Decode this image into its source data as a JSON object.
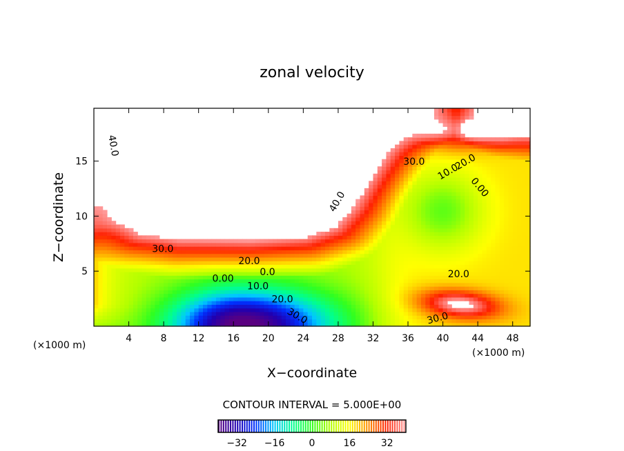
{
  "chart_data": {
    "type": "heatmap",
    "subtype": "filled-contour",
    "title": "zonal velocity",
    "xlabel": "X−coordinate",
    "ylabel": "Z−coordinate",
    "x_units_left": "(×1000 m)",
    "x_units_right": "(×1000 m)",
    "xlim": [
      0,
      50
    ],
    "ylim": [
      0,
      19.8
    ],
    "xticks": [
      4,
      8,
      12,
      16,
      20,
      24,
      28,
      32,
      36,
      40,
      44,
      48
    ],
    "yticks": [
      5,
      10,
      15
    ],
    "contour_interval_text": "CONTOUR INTERVAL = 5.000E+00",
    "contour_interval": 5,
    "colorbar": {
      "range": [
        -40,
        40
      ],
      "ticks": [
        -32,
        -16,
        0,
        16,
        32
      ],
      "tick_labels": [
        "−32",
        "−16",
        "0",
        "16",
        "32"
      ],
      "colors": [
        "#5a0080",
        "#2000b0",
        "#0030ff",
        "#00c8ff",
        "#00ff90",
        "#30ff20",
        "#b0ff00",
        "#ffff00",
        "#ff9000",
        "#ff2000",
        "#ff9a9a"
      ]
    },
    "above_range_color": "#ffffff",
    "features": {
      "jet_core_max_above": 40,
      "lower_minimum_approx": -40,
      "mid_right_minimum_approx": -5,
      "lower_right_maximum_approx": 35
    },
    "contour_labels": [
      {
        "text": "40.0",
        "x": 2.2,
        "z": 16.4,
        "angle": 80
      },
      {
        "text": "30.0",
        "x": 7.9,
        "z": 7.0,
        "angle": 0
      },
      {
        "text": "20.0",
        "x": 17.8,
        "z": 5.9,
        "angle": 0
      },
      {
        "text": "0.0",
        "x": 19.9,
        "z": 4.9,
        "angle": 0
      },
      {
        "text": "0.00",
        "x": 14.8,
        "z": 4.3,
        "angle": 0
      },
      {
        "text": "10.0",
        "x": 18.8,
        "z": 3.6,
        "angle": 0
      },
      {
        "text": "20.0",
        "x": 21.6,
        "z": 2.4,
        "angle": 0
      },
      {
        "text": "30.0",
        "x": 23.3,
        "z": 0.9,
        "angle": 30
      },
      {
        "text": "40.0",
        "x": 27.9,
        "z": 11.3,
        "angle": -60
      },
      {
        "text": "30.0",
        "x": 36.7,
        "z": 14.9,
        "angle": 0
      },
      {
        "text": "10.0",
        "x": 40.6,
        "z": 14.0,
        "angle": -30
      },
      {
        "text": "20.0",
        "x": 42.6,
        "z": 14.9,
        "angle": -30
      },
      {
        "text": "0.00",
        "x": 44.2,
        "z": 12.6,
        "angle": 50
      },
      {
        "text": "20.0",
        "x": 41.8,
        "z": 4.7,
        "angle": 0
      },
      {
        "text": "30.0",
        "x": 39.4,
        "z": 0.7,
        "angle": -15
      }
    ]
  }
}
